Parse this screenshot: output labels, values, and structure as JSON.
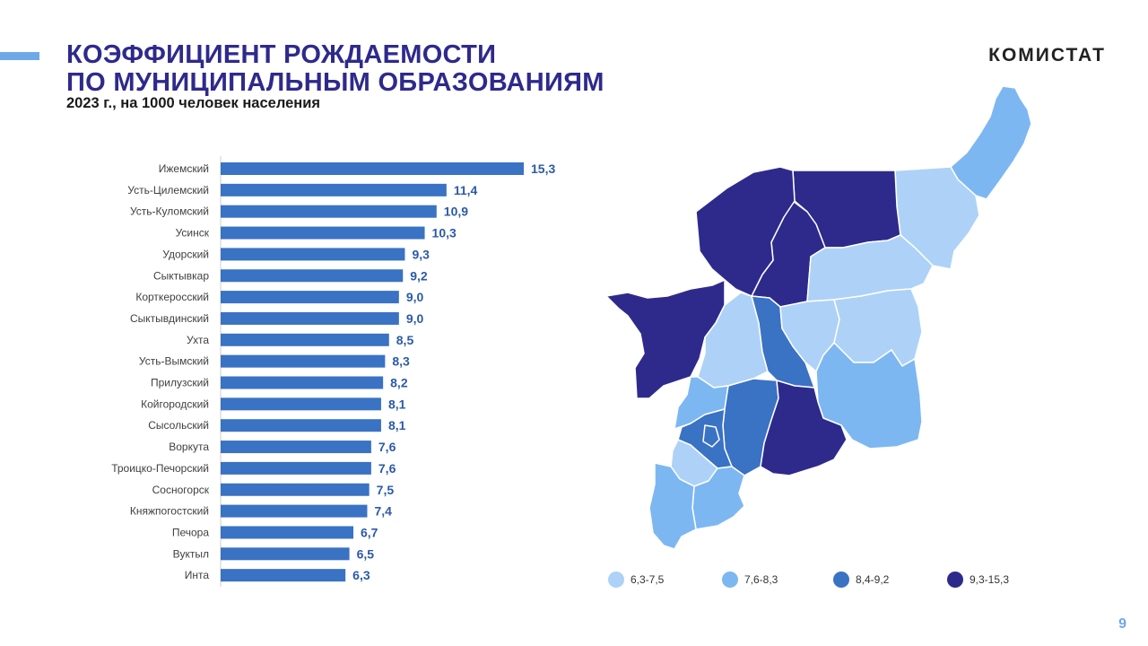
{
  "header": {
    "title_line1": "КОЭФФИЦИЕНТ РОЖДАЕМОСТИ",
    "title_line2": "ПО МУНИЦИПАЛЬНЫМ ОБРАЗОВАНИЯМ",
    "subtitle": "2023 г., на 1000 человек населения",
    "brand": "КОМИСТАТ",
    "page_number": "9"
  },
  "colors": {
    "title": "#2e2a8c",
    "accent": "#6fa8e8",
    "bar": "#3a72c4",
    "bar_label": "#2c5aa8"
  },
  "chart_data": {
    "type": "bar",
    "orientation": "horizontal",
    "categories": [
      "Ижемский",
      "Усть-Цилемский",
      "Усть-Куломский",
      "Усинск",
      "Удорский",
      "Сыктывкар",
      "Корткеросский",
      "Сыктывдинский",
      "Ухта",
      "Усть-Вымский",
      "Прилузский",
      "Койгородский",
      "Сысольский",
      "Воркута",
      "Троицко-Печорский",
      "Сосногорск",
      "Княжпогостский",
      "Печора",
      "Вуктыл",
      "Инта"
    ],
    "values": [
      15.3,
      11.4,
      10.9,
      10.3,
      9.3,
      9.2,
      9.0,
      9.0,
      8.5,
      8.3,
      8.2,
      8.1,
      8.1,
      7.6,
      7.6,
      7.5,
      7.4,
      6.7,
      6.5,
      6.3
    ],
    "value_labels": [
      "15,3",
      "11,4",
      "10,9",
      "10,3",
      "9,3",
      "9,2",
      "9,0",
      "9,0",
      "8,5",
      "8,3",
      "8,2",
      "8,1",
      "8,1",
      "7,6",
      "7,6",
      "7,5",
      "7,4",
      "6,7",
      "6,5",
      "6,3"
    ],
    "xlim": [
      0,
      15.3
    ]
  },
  "map_legend": [
    {
      "label": "6,3-7,5",
      "color": "#aed2f7"
    },
    {
      "label": "7,6-8,3",
      "color": "#7db7f2"
    },
    {
      "label": "8,4-9,2",
      "color": "#3a72c4"
    },
    {
      "label": "9,3-15,3",
      "color": "#2e2a8c"
    }
  ]
}
